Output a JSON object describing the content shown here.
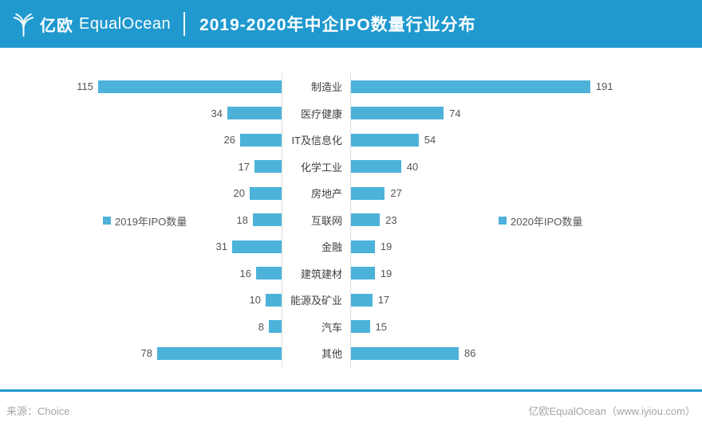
{
  "header": {
    "logo_cn": "亿欧",
    "logo_en": "EqualOcean",
    "title": "2019-2020年中企IPO数量行业分布"
  },
  "footer": {
    "source": "来源：Choice",
    "credit": "亿欧EqualOcean（www.iyiou.com）"
  },
  "colors": {
    "header_bg": "#2099CF",
    "bar": "#4DB2DA",
    "divider": "#DCDCDC"
  },
  "chart_data": {
    "type": "bar",
    "variant": "tornado-bilateral",
    "title": "2019-2020年中企IPO数量行业分布",
    "categories": [
      "制造业",
      "医疗健康",
      "IT及信息化",
      "化学工业",
      "房地产",
      "互联网",
      "金融",
      "建筑建材",
      "能源及矿业",
      "汽车",
      "其他"
    ],
    "series": [
      {
        "name": "2019年IPO数量",
        "side": "left",
        "values": [
          115,
          34,
          26,
          17,
          20,
          18,
          31,
          16,
          10,
          8,
          78
        ],
        "axis_max": 120
      },
      {
        "name": "2020年IPO数量",
        "side": "right",
        "values": [
          191,
          74,
          54,
          40,
          27,
          23,
          19,
          19,
          17,
          15,
          86
        ],
        "axis_max": 200
      }
    ],
    "value_labels": "outside-ends",
    "legend_position": "middle-of-each-side",
    "grid": "center-divider-lines-only"
  }
}
